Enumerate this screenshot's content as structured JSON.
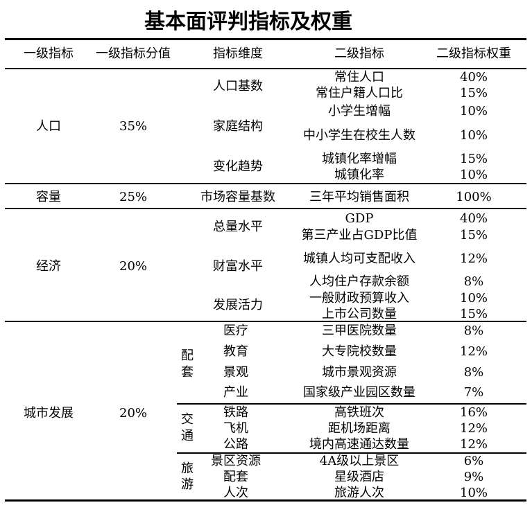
{
  "title": "基本面评判指标及权重",
  "headers": [
    "一级指标",
    "一级指标分值",
    "指标维度",
    "二级指标",
    "二级指标权重"
  ],
  "population": {
    "name": "人口",
    "score": "35%",
    "dims": [
      "人口基数",
      "家庭结构",
      "变化趋势"
    ],
    "items": [
      {
        "name": "常住人口",
        "weight": "40%"
      },
      {
        "name": "常住户籍人口比",
        "weight": "15%"
      },
      {
        "name": "小学生增幅",
        "weight": "10%"
      },
      {
        "name": "中小学生在校生人数",
        "weight": "10%"
      },
      {
        "name": "城镇化率增幅",
        "weight": "15%"
      },
      {
        "name": "城镇化率",
        "weight": "10%"
      }
    ]
  },
  "capacity": {
    "name": "容量",
    "score": "25%",
    "dim": "市场容量基数",
    "item": "三年平均销售面积",
    "weight": "100%"
  },
  "economy": {
    "name": "经济",
    "score": "20%",
    "dims": [
      "总量水平",
      "财富水平",
      "发展活力"
    ],
    "items": [
      {
        "name": "GDP",
        "weight": "40%"
      },
      {
        "name": "第三产业占GDP比值",
        "weight": "15%"
      },
      {
        "name": "城镇人均可支配收入",
        "weight": "12%"
      },
      {
        "name": "人均住户存款余额",
        "weight": "8%"
      },
      {
        "name": "一般财政预算收入",
        "weight": "10%"
      },
      {
        "name": "上市公司数量",
        "weight": "15%"
      }
    ]
  },
  "city": {
    "name": "城市发展",
    "score": "20%",
    "groups": [
      {
        "label": [
          "配",
          "套"
        ],
        "rows": [
          {
            "dim": "医疗",
            "name": "三甲医院数量",
            "weight": "8%"
          },
          {
            "dim": "教育",
            "name": "大专院校数量",
            "weight": "12%"
          },
          {
            "dim": "景观",
            "name": "城市景观资源",
            "weight": "8%"
          },
          {
            "dim": "产业",
            "name": "国家级产业园区数量",
            "weight": "7%"
          }
        ]
      },
      {
        "label": [
          "交",
          "通"
        ],
        "rows": [
          {
            "dim": "铁路",
            "name": "高铁班次",
            "weight": "16%"
          },
          {
            "dim": "飞机",
            "name": "距机场距离",
            "weight": "12%"
          },
          {
            "dim": "公路",
            "name": "境内高速通达数量",
            "weight": "12%"
          }
        ]
      },
      {
        "label": [
          "旅",
          "游"
        ],
        "rows": [
          {
            "dim": "景区资源",
            "name": "4A级以上景区",
            "weight": "6%"
          },
          {
            "dim": "配套",
            "name": "星级酒店",
            "weight": "9%"
          },
          {
            "dim": "人次",
            "name": "旅游人次",
            "weight": "10%"
          }
        ]
      }
    ]
  }
}
